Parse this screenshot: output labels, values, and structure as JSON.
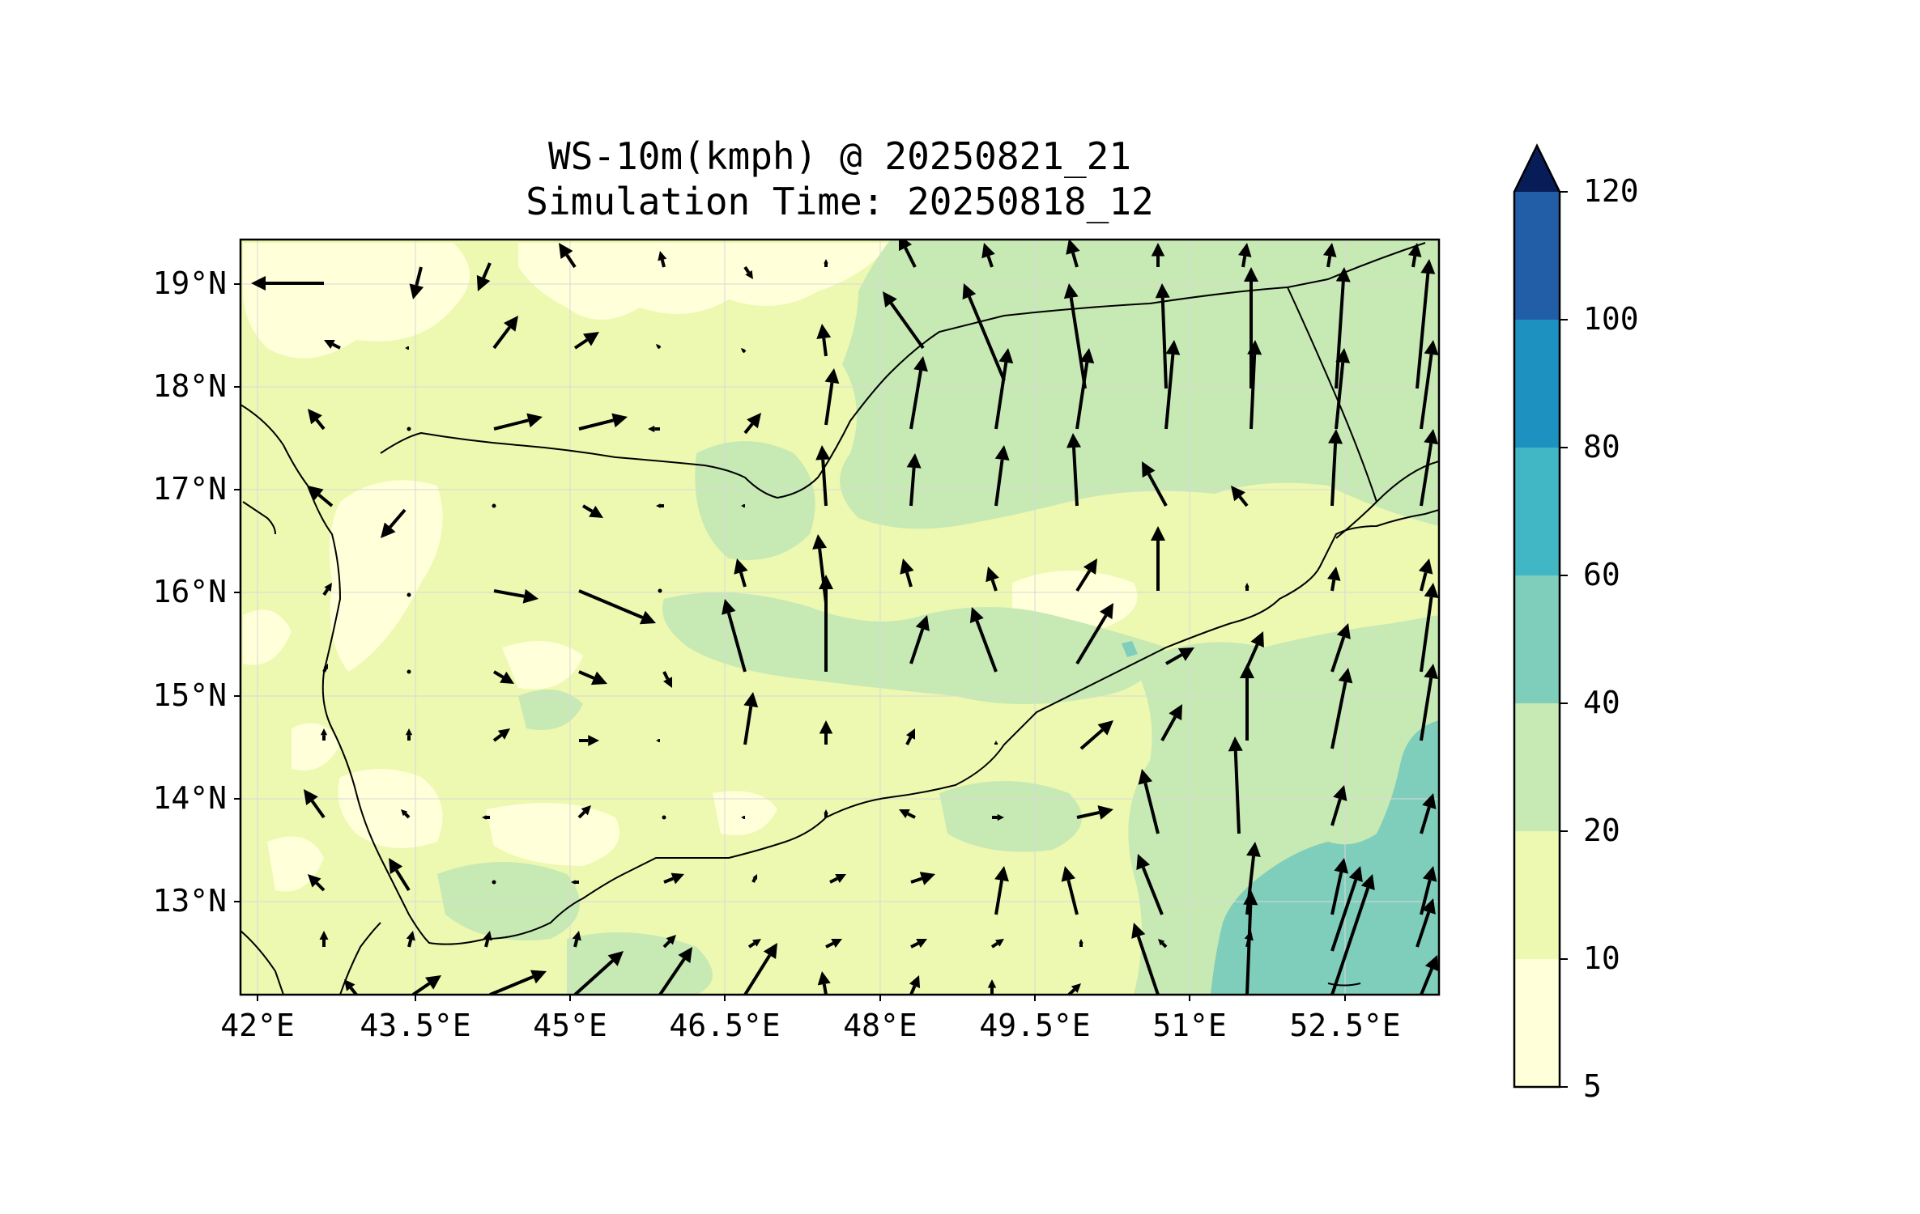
{
  "title": {
    "line1": "WS-10m(kmph) @ 20250821_21",
    "line2": "Simulation Time: 20250818_12"
  },
  "map": {
    "lon_range": [
      41.7,
      53.5
    ],
    "lat_range": [
      12.1,
      19.45
    ],
    "lon_ticks": [
      "42°E",
      "43.5°E",
      "45°E",
      "46.5°E",
      "48°E",
      "49.5°E",
      "51°E",
      "52.5°E"
    ],
    "lat_ticks": [
      "19°N",
      "18°N",
      "17°N",
      "16°N",
      "15°N",
      "14°N",
      "13°N"
    ],
    "grid": true
  },
  "colorbar": {
    "levels": [
      "5",
      "10",
      "20",
      "40",
      "60",
      "80",
      "100",
      "120"
    ],
    "colors": [
      "#ffffd9",
      "#edf8b1",
      "#c7e9b4",
      "#7fcdbb",
      "#41b6c4",
      "#1d91c0",
      "#225ea8",
      "#0c2c84"
    ],
    "extend": "max",
    "extend_color": "#081d58"
  },
  "colors": {
    "background_field": "#edf8b1",
    "calm": "#ffffd9",
    "moderate": "#c7e9b4",
    "strong": "#7fcdbb",
    "arrow": "#000000"
  }
}
